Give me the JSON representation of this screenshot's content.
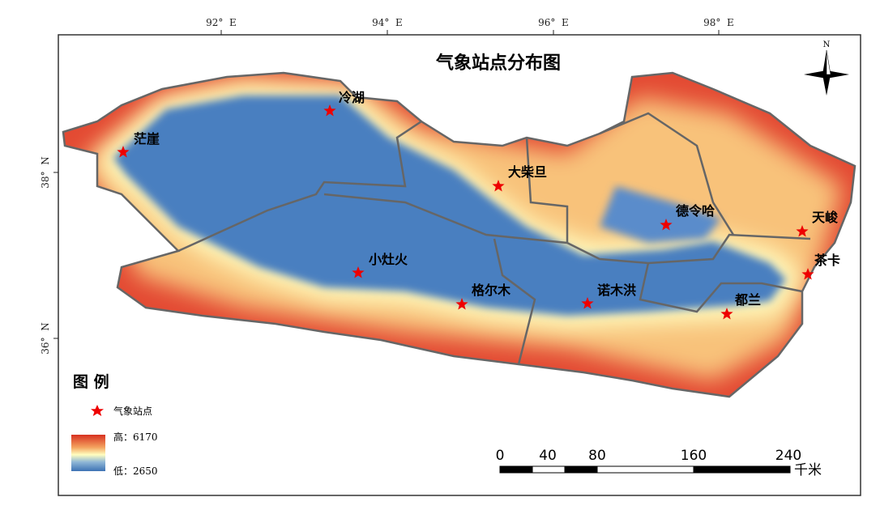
{
  "map": {
    "title": "气象站点分布图",
    "north": "N",
    "lon_labels": [
      "92°  E",
      "94°  E",
      "96°  E",
      "98°  E"
    ],
    "lat_labels": [
      "38°  N",
      "36°  N"
    ],
    "stations": [
      {
        "name": "冷湖"
      },
      {
        "name": "茫崖"
      },
      {
        "name": "大柴旦"
      },
      {
        "name": "德令哈"
      },
      {
        "name": "天峻"
      },
      {
        "name": "茶卡"
      },
      {
        "name": "小灶火"
      },
      {
        "name": "格尔木"
      },
      {
        "name": "诺木洪"
      },
      {
        "name": "都兰"
      }
    ],
    "legend": {
      "title": "图 例",
      "station": "气象站点",
      "high": "高：6170",
      "low": "低：2650"
    },
    "scale": {
      "labels": [
        "0",
        "40",
        "80",
        "160",
        "240"
      ],
      "unit": "千米"
    }
  }
}
